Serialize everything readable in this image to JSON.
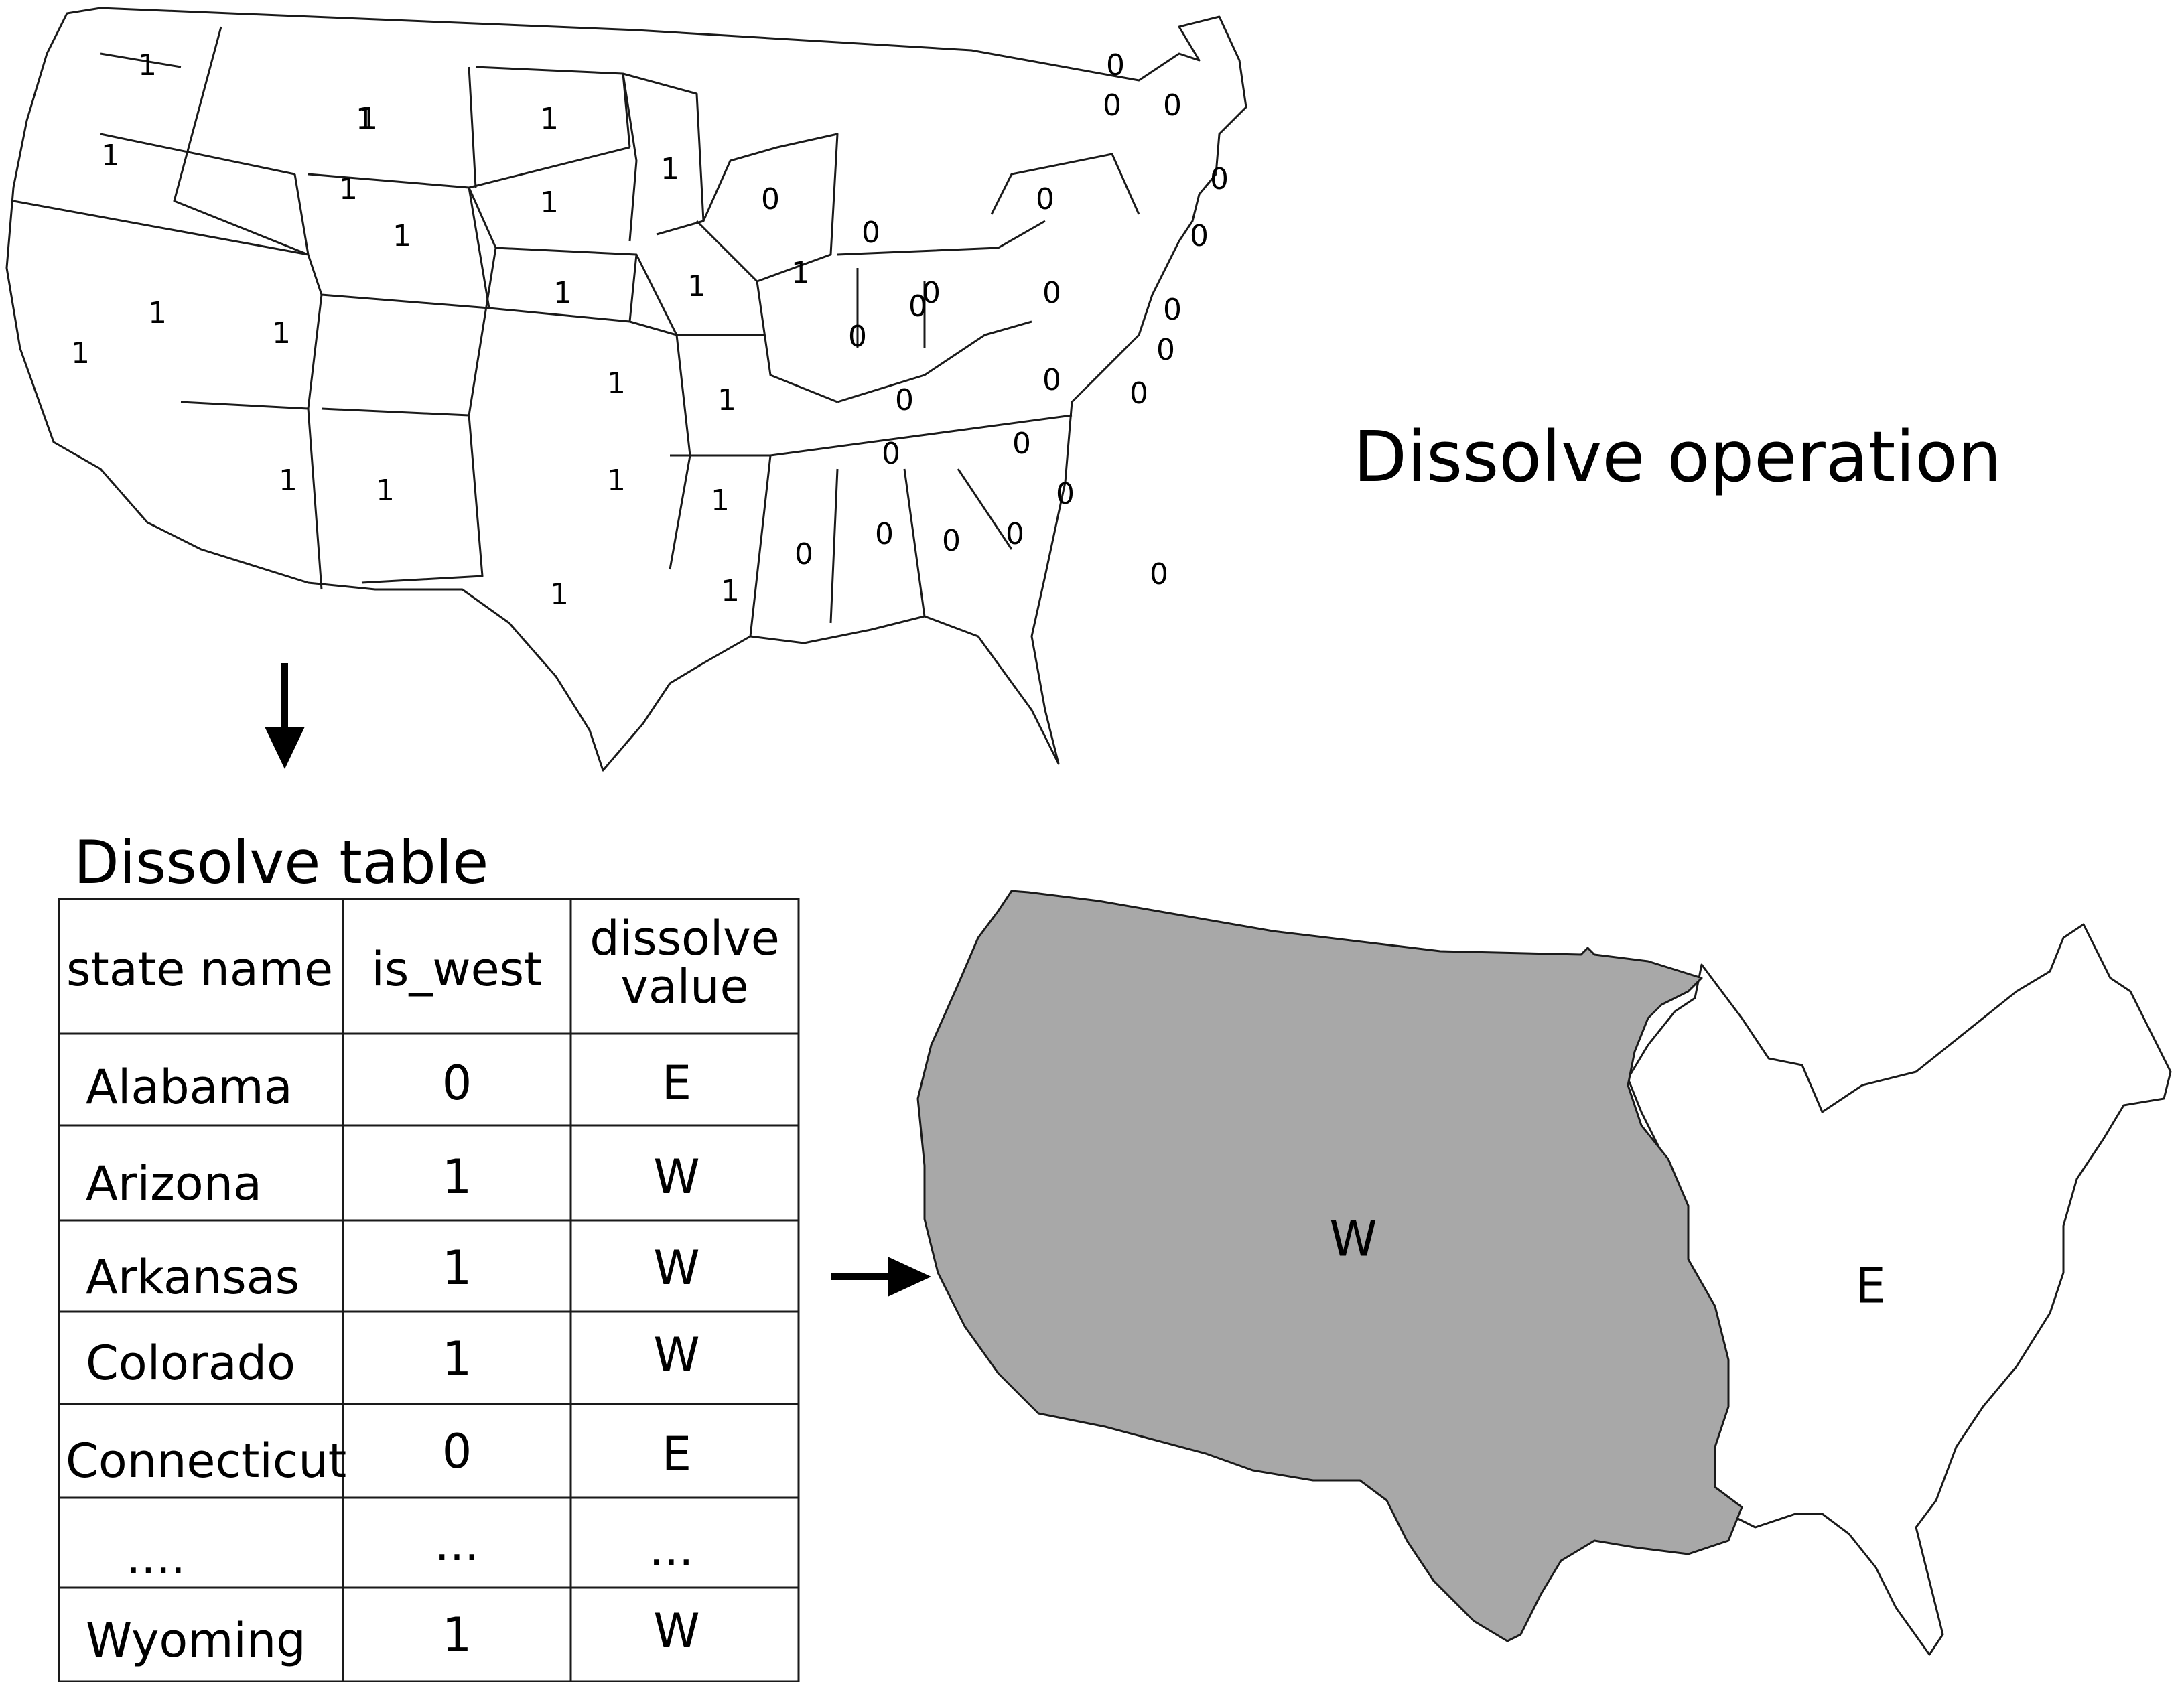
{
  "title": "Dissolve operation",
  "table_title": "Dissolve table",
  "table": {
    "headers": [
      "state name",
      "is_west",
      [
        "dissolve",
        "value"
      ]
    ],
    "rows": [
      [
        "Alabama",
        "0",
        "E"
      ],
      [
        "Arizona",
        "1",
        "W"
      ],
      [
        "Arkansas",
        "1",
        "W"
      ],
      [
        "Colorado",
        "1",
        "W"
      ],
      [
        "Connecticut",
        "0",
        "E"
      ],
      [
        "....",
        "...",
        "..."
      ],
      [
        "Wyoming",
        "1",
        "W"
      ]
    ]
  },
  "input_map": {
    "state_values": [
      "1",
      "1",
      "1",
      "1",
      "1",
      "1",
      "1",
      "1",
      "1",
      "1",
      "1",
      "1",
      "1",
      "1",
      "1",
      "1",
      "1",
      "1",
      "1",
      "1",
      "1",
      "1",
      "1",
      "0",
      "0",
      "0",
      "0",
      "0",
      "0",
      "0",
      "0",
      "0",
      "0",
      "0",
      "0",
      "0",
      "0",
      "0",
      "0",
      "0",
      "0",
      "0",
      "0",
      "0",
      "0",
      "0",
      "0",
      "0"
    ]
  },
  "output_map": {
    "west_label": "W",
    "east_label": "E",
    "west_fill": "#a8a8a8",
    "east_fill": "#ffffff"
  },
  "colors": {
    "stroke": "#1a1a1a",
    "background": "#ffffff"
  }
}
